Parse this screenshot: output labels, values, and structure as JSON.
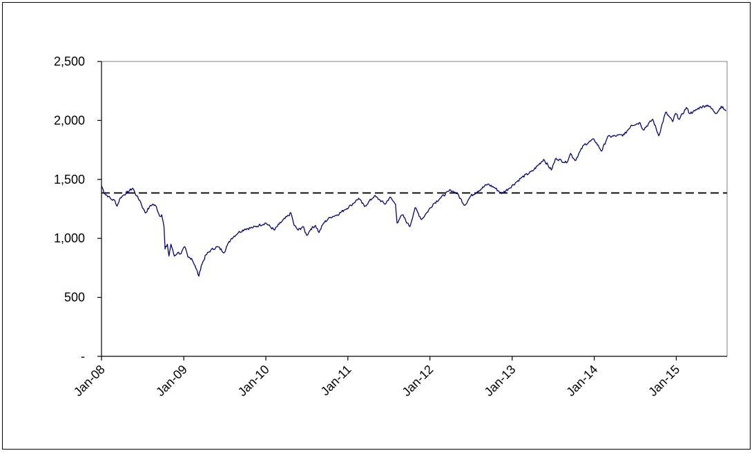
{
  "chart_data": {
    "type": "line",
    "title": "",
    "xlabel": "",
    "ylabel": "",
    "x_tick_labels": [
      "Jan-08",
      "Jan-09",
      "Jan-10",
      "Jan-11",
      "Jan-12",
      "Jan-13",
      "Jan-14",
      "Jan-15"
    ],
    "x_tick_dates": [
      "2008-01-01",
      "2009-01-01",
      "2010-01-01",
      "2011-01-01",
      "2012-01-01",
      "2013-01-01",
      "2014-01-01",
      "2015-01-01"
    ],
    "xlim": [
      "2008-01-01",
      "2015-08-15"
    ],
    "y_tick_labels": [
      "-",
      "500",
      "1,000",
      "1,500",
      "2,000",
      "2,500"
    ],
    "y_tick_values": [
      0,
      500,
      1000,
      1500,
      2000,
      2500
    ],
    "ylim": [
      0,
      2500
    ],
    "grid": false,
    "legend": "none",
    "line_color": "#000080",
    "reference_line": {
      "value": 1385,
      "style": "dashed",
      "color": "#000000"
    },
    "series": [
      {
        "x": [
          "2008-01-01",
          "2008-01-15",
          "2008-02-01",
          "2008-02-15",
          "2008-03-01",
          "2008-03-10",
          "2008-03-25",
          "2008-04-10",
          "2008-05-01",
          "2008-05-19",
          "2008-06-05",
          "2008-06-20",
          "2008-07-05",
          "2008-07-15",
          "2008-08-01",
          "2008-08-15",
          "2008-09-01",
          "2008-09-15",
          "2008-09-25",
          "2008-10-05",
          "2008-10-10",
          "2008-10-20",
          "2008-10-27",
          "2008-11-05",
          "2008-11-20",
          "2008-12-05",
          "2008-12-20",
          "2009-01-05",
          "2009-01-20",
          "2009-02-05",
          "2009-02-20",
          "2009-03-09",
          "2009-03-20",
          "2009-04-10",
          "2009-05-01",
          "2009-06-01",
          "2009-07-01",
          "2009-07-10",
          "2009-08-01",
          "2009-09-01",
          "2009-10-01",
          "2009-11-01",
          "2009-12-01",
          "2010-01-01",
          "2010-02-08",
          "2010-03-01",
          "2010-04-23",
          "2010-05-07",
          "2010-05-25",
          "2010-06-15",
          "2010-07-02",
          "2010-07-20",
          "2010-08-10",
          "2010-08-26",
          "2010-09-15",
          "2010-10-15",
          "2010-11-15",
          "2010-12-15",
          "2011-01-15",
          "2011-02-18",
          "2011-03-16",
          "2011-04-29",
          "2011-05-20",
          "2011-06-16",
          "2011-07-07",
          "2011-08-01",
          "2011-08-08",
          "2011-08-20",
          "2011-09-01",
          "2011-09-22",
          "2011-10-04",
          "2011-10-27",
          "2011-11-25",
          "2011-12-15",
          "2012-01-15",
          "2012-02-15",
          "2012-04-02",
          "2012-05-01",
          "2012-06-04",
          "2012-07-01",
          "2012-08-01",
          "2012-09-14",
          "2012-10-15",
          "2012-11-15",
          "2012-12-15",
          "2013-01-15",
          "2013-02-15",
          "2013-04-01",
          "2013-05-21",
          "2013-06-24",
          "2013-07-15",
          "2013-08-30",
          "2013-09-18",
          "2013-10-08",
          "2013-11-15",
          "2013-12-31",
          "2014-02-03",
          "2014-03-01",
          "2014-04-11",
          "2014-05-15",
          "2014-06-15",
          "2014-07-24",
          "2014-08-07",
          "2014-09-18",
          "2014-10-15",
          "2014-11-15",
          "2014-12-16",
          "2014-12-29",
          "2015-01-15",
          "2015-02-15",
          "2015-03-01",
          "2015-03-25",
          "2015-04-15",
          "2015-05-21",
          "2015-06-29",
          "2015-07-20",
          "2015-08-10"
        ],
        "values": [
          1447,
          1380,
          1355,
          1330,
          1320,
          1273,
          1345,
          1370,
          1400,
          1426,
          1360,
          1320,
          1250,
          1215,
          1265,
          1290,
          1270,
          1190,
          1200,
          1100,
          910,
          950,
          850,
          950,
          850,
          880,
          870,
          930,
          840,
          830,
          770,
          680,
          770,
          860,
          900,
          930,
          880,
          930,
          1000,
          1050,
          1080,
          1090,
          1110,
          1130,
          1070,
          1120,
          1215,
          1110,
          1070,
          1100,
          1025,
          1080,
          1110,
          1050,
          1130,
          1180,
          1200,
          1240,
          1280,
          1340,
          1270,
          1360,
          1330,
          1290,
          1350,
          1290,
          1130,
          1170,
          1200,
          1130,
          1100,
          1260,
          1160,
          1210,
          1290,
          1340,
          1410,
          1380,
          1280,
          1360,
          1400,
          1460,
          1430,
          1380,
          1420,
          1470,
          1520,
          1570,
          1670,
          1580,
          1680,
          1640,
          1720,
          1660,
          1790,
          1840,
          1740,
          1860,
          1870,
          1880,
          1960,
          1980,
          1920,
          2010,
          1870,
          2070,
          1990,
          2060,
          2010,
          2110,
          2060,
          2080,
          2110,
          2130,
          2060,
          2120,
          2080
        ]
      }
    ]
  }
}
